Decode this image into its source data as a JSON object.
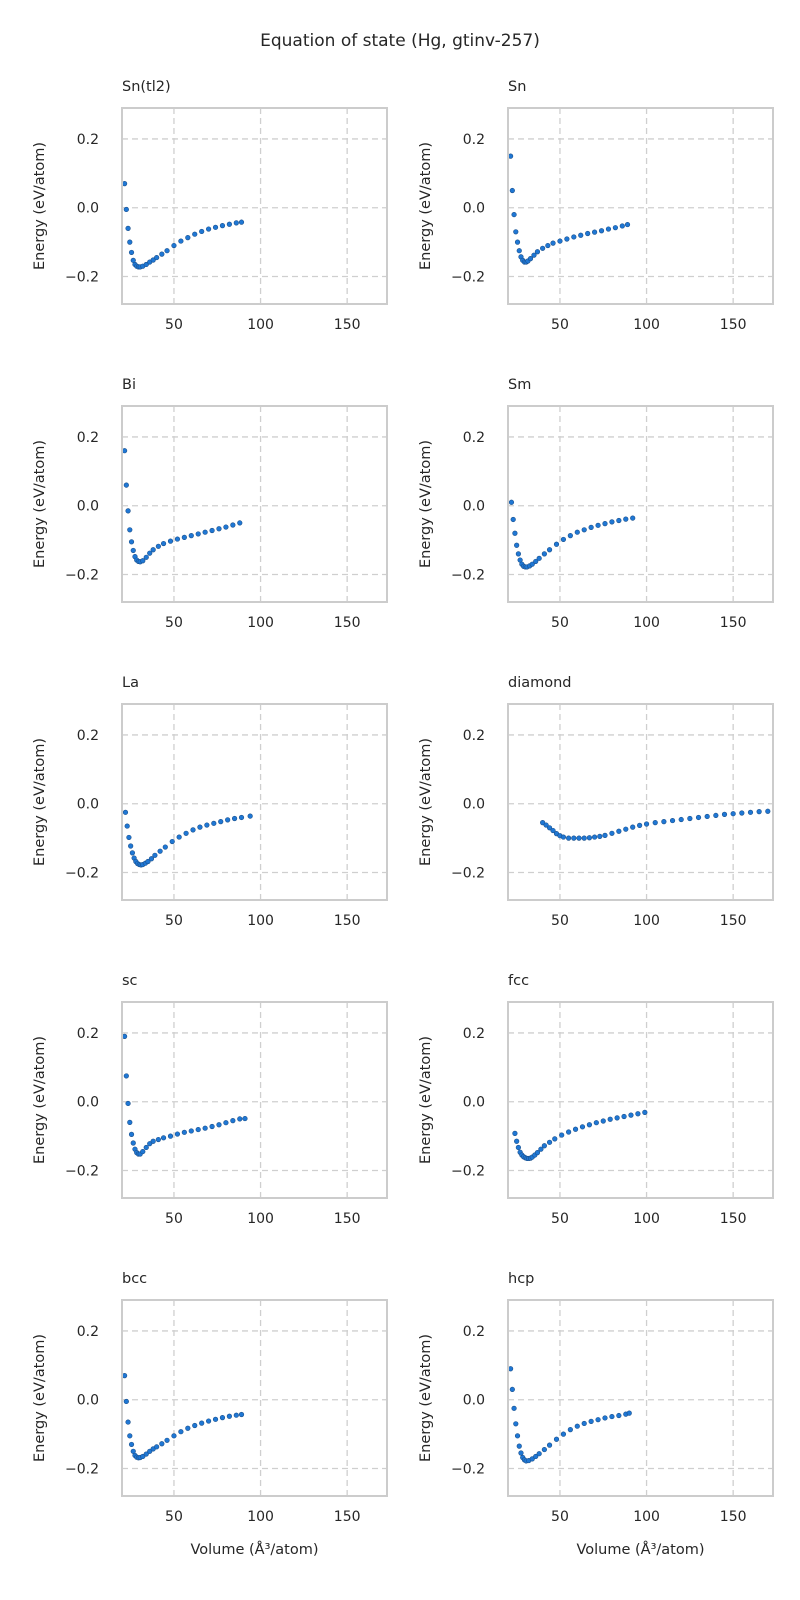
{
  "figure": {
    "title": "Equation of state (Hg, gtinv-257)",
    "marker_color": "#1f77d4",
    "marker_edge": "#1a4f8a",
    "grid_color": "#cfcfcf",
    "frame_color": "#cccccc"
  },
  "chart_data": [
    {
      "type": "scatter",
      "title": "Sn(tl2)",
      "xlabel": "",
      "ylabel": "Energy (eV/atom)",
      "xlim": [
        20,
        173
      ],
      "ylim": [
        -0.28,
        0.29
      ],
      "xticks": [
        50,
        100,
        150
      ],
      "yticks": [
        -0.2,
        0.0,
        0.2
      ],
      "grid": true,
      "x": [
        21.5,
        22.5,
        23.5,
        24.5,
        25.5,
        26.5,
        27.5,
        28.5,
        29.5,
        30.5,
        32,
        34,
        36,
        38,
        40,
        43,
        46,
        50,
        54,
        58,
        62,
        66,
        70,
        74,
        78,
        82,
        86,
        89
      ],
      "y": [
        0.07,
        -0.005,
        -0.06,
        -0.1,
        -0.13,
        -0.153,
        -0.165,
        -0.17,
        -0.172,
        -0.172,
        -0.17,
        -0.165,
        -0.158,
        -0.152,
        -0.145,
        -0.135,
        -0.125,
        -0.11,
        -0.097,
        -0.087,
        -0.077,
        -0.069,
        -0.062,
        -0.057,
        -0.052,
        -0.048,
        -0.044,
        -0.042
      ]
    },
    {
      "type": "scatter",
      "title": "Sn",
      "xlabel": "",
      "ylabel": "Energy (eV/atom)",
      "xlim": [
        20,
        173
      ],
      "ylim": [
        -0.28,
        0.29
      ],
      "xticks": [
        50,
        100,
        150
      ],
      "yticks": [
        -0.2,
        0.0,
        0.2
      ],
      "grid": true,
      "x": [
        21.5,
        22.5,
        23.5,
        24.5,
        25.5,
        26.5,
        27.5,
        28.5,
        29.5,
        30.5,
        31.5,
        33,
        35,
        37,
        40,
        43,
        46,
        50,
        54,
        58,
        62,
        66,
        70,
        74,
        78,
        82,
        86,
        89
      ],
      "y": [
        0.15,
        0.05,
        -0.02,
        -0.07,
        -0.1,
        -0.125,
        -0.143,
        -0.153,
        -0.158,
        -0.158,
        -0.155,
        -0.148,
        -0.138,
        -0.128,
        -0.118,
        -0.11,
        -0.103,
        -0.097,
        -0.091,
        -0.085,
        -0.08,
        -0.075,
        -0.071,
        -0.067,
        -0.062,
        -0.058,
        -0.053,
        -0.049
      ]
    },
    {
      "type": "scatter",
      "title": "Bi",
      "xlabel": "",
      "ylabel": "Energy (eV/atom)",
      "xlim": [
        20,
        173
      ],
      "ylim": [
        -0.28,
        0.29
      ],
      "xticks": [
        50,
        100,
        150
      ],
      "yticks": [
        -0.2,
        0.0,
        0.2
      ],
      "grid": true,
      "x": [
        21.5,
        22.5,
        23.5,
        24.5,
        25.5,
        26.5,
        27.5,
        28.5,
        29.5,
        30.5,
        32,
        34,
        36,
        38,
        41,
        44,
        48,
        52,
        56,
        60,
        64,
        68,
        72,
        76,
        80,
        84,
        88
      ],
      "y": [
        0.16,
        0.06,
        -0.015,
        -0.07,
        -0.105,
        -0.13,
        -0.148,
        -0.158,
        -0.162,
        -0.163,
        -0.16,
        -0.15,
        -0.138,
        -0.128,
        -0.118,
        -0.11,
        -0.103,
        -0.097,
        -0.092,
        -0.087,
        -0.082,
        -0.077,
        -0.072,
        -0.067,
        -0.062,
        -0.056,
        -0.05
      ]
    },
    {
      "type": "scatter",
      "title": "Sm",
      "xlabel": "",
      "ylabel": "Energy (eV/atom)",
      "xlim": [
        20,
        173
      ],
      "ylim": [
        -0.28,
        0.29
      ],
      "xticks": [
        50,
        100,
        150
      ],
      "yticks": [
        -0.2,
        0.0,
        0.2
      ],
      "grid": true,
      "x": [
        22,
        23,
        24,
        25,
        26,
        27,
        28,
        29,
        30,
        31,
        32.5,
        34,
        36,
        38,
        41,
        44,
        48,
        52,
        56,
        60,
        64,
        68,
        72,
        76,
        80,
        84,
        88,
        92
      ],
      "y": [
        0.01,
        -0.04,
        -0.08,
        -0.115,
        -0.14,
        -0.158,
        -0.17,
        -0.176,
        -0.178,
        -0.178,
        -0.175,
        -0.17,
        -0.162,
        -0.153,
        -0.14,
        -0.128,
        -0.112,
        -0.098,
        -0.087,
        -0.077,
        -0.07,
        -0.063,
        -0.057,
        -0.052,
        -0.047,
        -0.043,
        -0.039,
        -0.036
      ]
    },
    {
      "type": "scatter",
      "title": "La",
      "xlabel": "",
      "ylabel": "Energy (eV/atom)",
      "xlim": [
        20,
        173
      ],
      "ylim": [
        -0.28,
        0.29
      ],
      "xticks": [
        50,
        100,
        150
      ],
      "yticks": [
        -0.2,
        0.0,
        0.2
      ],
      "grid": true,
      "x": [
        22,
        23,
        24,
        25,
        26,
        27,
        28,
        29,
        30,
        31,
        32,
        33.5,
        35,
        37,
        39,
        42,
        45,
        49,
        53,
        57,
        61,
        65,
        69,
        73,
        77,
        81,
        85,
        89,
        94
      ],
      "y": [
        -0.025,
        -0.065,
        -0.098,
        -0.123,
        -0.143,
        -0.158,
        -0.168,
        -0.174,
        -0.177,
        -0.178,
        -0.177,
        -0.173,
        -0.168,
        -0.16,
        -0.15,
        -0.138,
        -0.126,
        -0.11,
        -0.097,
        -0.086,
        -0.076,
        -0.068,
        -0.062,
        -0.057,
        -0.052,
        -0.047,
        -0.043,
        -0.04,
        -0.036
      ]
    },
    {
      "type": "scatter",
      "title": "diamond",
      "xlabel": "",
      "ylabel": "Energy (eV/atom)",
      "xlim": [
        20,
        173
      ],
      "ylim": [
        -0.28,
        0.29
      ],
      "xticks": [
        50,
        100,
        150
      ],
      "yticks": [
        -0.2,
        0.0,
        0.2
      ],
      "grid": true,
      "x": [
        40,
        42,
        44,
        46,
        48,
        50,
        52,
        55,
        58,
        61,
        64,
        67,
        70,
        73,
        76,
        80,
        84,
        88,
        92,
        96,
        100,
        105,
        110,
        115,
        120,
        125,
        130,
        135,
        140,
        145,
        150,
        155,
        160,
        165,
        170
      ],
      "y": [
        -0.055,
        -0.062,
        -0.07,
        -0.078,
        -0.087,
        -0.093,
        -0.097,
        -0.1,
        -0.1,
        -0.1,
        -0.1,
        -0.099,
        -0.097,
        -0.095,
        -0.092,
        -0.086,
        -0.08,
        -0.074,
        -0.068,
        -0.063,
        -0.059,
        -0.055,
        -0.052,
        -0.049,
        -0.046,
        -0.043,
        -0.04,
        -0.037,
        -0.034,
        -0.031,
        -0.029,
        -0.027,
        -0.025,
        -0.023,
        -0.022
      ]
    },
    {
      "type": "scatter",
      "title": "sc",
      "xlabel": "",
      "ylabel": "Energy (eV/atom)",
      "xlim": [
        20,
        173
      ],
      "ylim": [
        -0.28,
        0.29
      ],
      "xticks": [
        50,
        100,
        150
      ],
      "yticks": [
        -0.2,
        0.0,
        0.2
      ],
      "grid": true,
      "x": [
        21.5,
        22.5,
        23.5,
        24.5,
        25.5,
        26.5,
        27.5,
        28.5,
        29.5,
        30.5,
        32,
        34,
        36,
        38,
        41,
        44,
        48,
        52,
        56,
        60,
        64,
        68,
        72,
        76,
        80,
        84,
        88,
        91
      ],
      "y": [
        0.19,
        0.075,
        -0.005,
        -0.06,
        -0.095,
        -0.12,
        -0.138,
        -0.148,
        -0.152,
        -0.152,
        -0.145,
        -0.133,
        -0.122,
        -0.115,
        -0.11,
        -0.105,
        -0.1,
        -0.094,
        -0.089,
        -0.085,
        -0.081,
        -0.077,
        -0.072,
        -0.067,
        -0.061,
        -0.055,
        -0.05,
        -0.049
      ]
    },
    {
      "type": "scatter",
      "title": "fcc",
      "xlabel": "",
      "ylabel": "Energy (eV/atom)",
      "xlim": [
        20,
        173
      ],
      "ylim": [
        -0.28,
        0.29
      ],
      "xticks": [
        50,
        100,
        150
      ],
      "yticks": [
        -0.2,
        0.0,
        0.2
      ],
      "grid": true,
      "x": [
        24,
        25,
        26,
        27,
        28,
        29,
        30,
        31,
        32,
        33,
        34,
        35.5,
        37,
        39,
        41,
        44,
        47,
        51,
        55,
        59,
        63,
        67,
        71,
        75,
        79,
        83,
        87,
        91,
        95,
        99
      ],
      "y": [
        -0.092,
        -0.115,
        -0.133,
        -0.147,
        -0.155,
        -0.16,
        -0.163,
        -0.165,
        -0.165,
        -0.164,
        -0.161,
        -0.155,
        -0.148,
        -0.138,
        -0.128,
        -0.118,
        -0.108,
        -0.097,
        -0.088,
        -0.08,
        -0.073,
        -0.067,
        -0.061,
        -0.056,
        -0.051,
        -0.047,
        -0.043,
        -0.039,
        -0.035,
        -0.031
      ]
    },
    {
      "type": "scatter",
      "title": "bcc",
      "xlabel": "Volume (Å³/atom)",
      "ylabel": "Energy (eV/atom)",
      "xlim": [
        20,
        173
      ],
      "ylim": [
        -0.28,
        0.29
      ],
      "xticks": [
        50,
        100,
        150
      ],
      "yticks": [
        -0.2,
        0.0,
        0.2
      ],
      "grid": true,
      "x": [
        21.5,
        22.5,
        23.5,
        24.5,
        25.5,
        26.5,
        27.5,
        28.5,
        29.5,
        30.5,
        32,
        34,
        36,
        38,
        40,
        43,
        46,
        50,
        54,
        58,
        62,
        66,
        70,
        74,
        78,
        82,
        86,
        89
      ],
      "y": [
        0.07,
        -0.005,
        -0.065,
        -0.105,
        -0.13,
        -0.15,
        -0.162,
        -0.167,
        -0.169,
        -0.168,
        -0.165,
        -0.158,
        -0.15,
        -0.143,
        -0.137,
        -0.128,
        -0.118,
        -0.105,
        -0.093,
        -0.083,
        -0.075,
        -0.068,
        -0.062,
        -0.057,
        -0.052,
        -0.048,
        -0.045,
        -0.043
      ]
    },
    {
      "type": "scatter",
      "title": "hcp",
      "xlabel": "Volume (Å³/atom)",
      "ylabel": "Energy (eV/atom)",
      "xlim": [
        20,
        173
      ],
      "ylim": [
        -0.28,
        0.29
      ],
      "xticks": [
        50,
        100,
        150
      ],
      "yticks": [
        -0.2,
        0.0,
        0.2
      ],
      "grid": true,
      "x": [
        21.5,
        22.5,
        23.5,
        24.5,
        25.5,
        26.5,
        27.5,
        28.5,
        29.5,
        30.5,
        32,
        34,
        36,
        38,
        41,
        44,
        48,
        52,
        56,
        60,
        64,
        68,
        72,
        76,
        80,
        84,
        88,
        90
      ],
      "y": [
        0.09,
        0.03,
        -0.025,
        -0.07,
        -0.105,
        -0.135,
        -0.155,
        -0.168,
        -0.175,
        -0.178,
        -0.177,
        -0.172,
        -0.165,
        -0.157,
        -0.145,
        -0.132,
        -0.115,
        -0.1,
        -0.087,
        -0.077,
        -0.069,
        -0.063,
        -0.058,
        -0.053,
        -0.049,
        -0.046,
        -0.042,
        -0.039
      ]
    }
  ]
}
